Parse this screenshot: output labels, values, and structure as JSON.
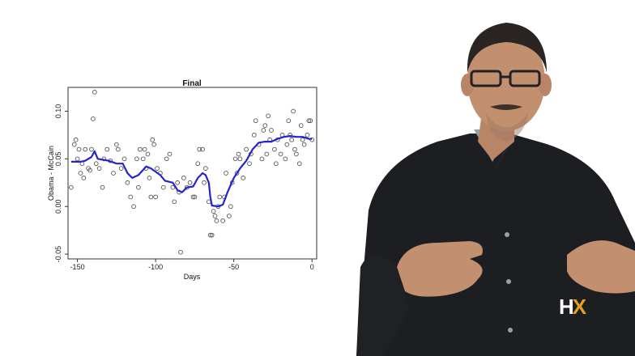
{
  "logo": {
    "h": "H",
    "x": "X"
  },
  "chart_data": {
    "type": "scatter",
    "title": "Final",
    "xlabel": "Days",
    "ylabel": "Obama - McCain",
    "xlim": [
      -156,
      3
    ],
    "ylim": [
      -0.055,
      0.125
    ],
    "xticks": [
      -150,
      -100,
      -50,
      0
    ],
    "yticks": [
      -0.05,
      0.0,
      0.05,
      0.1
    ],
    "xtick_labels": [
      "-150",
      "-100",
      "-50",
      "0"
    ],
    "ytick_labels": [
      "-0.05",
      "0.00",
      "0.05",
      "0.10"
    ],
    "grid": false,
    "colors": {
      "points": "#555555",
      "smooth": "#2323d0",
      "frame": "#333333"
    },
    "points": [
      [
        -154,
        0.02
      ],
      [
        -152,
        0.065
      ],
      [
        -151,
        0.07
      ],
      [
        -150,
        0.05
      ],
      [
        -149,
        0.06
      ],
      [
        -148,
        0.035
      ],
      [
        -147,
        0.045
      ],
      [
        -146,
        0.03
      ],
      [
        -145,
        0.06
      ],
      [
        -143,
        0.04
      ],
      [
        -142,
        0.038
      ],
      [
        -141,
        0.06
      ],
      [
        -140,
        0.092
      ],
      [
        -139,
        0.12
      ],
      [
        -138,
        0.045
      ],
      [
        -136,
        0.04
      ],
      [
        -134,
        0.02
      ],
      [
        -133,
        0.05
      ],
      [
        -131,
        0.06
      ],
      [
        -129,
        0.048
      ],
      [
        -127,
        0.035
      ],
      [
        -125,
        0.065
      ],
      [
        -124,
        0.06
      ],
      [
        -122,
        0.04
      ],
      [
        -120,
        0.05
      ],
      [
        -118,
        0.025
      ],
      [
        -116,
        0.01
      ],
      [
        -114,
        0.0
      ],
      [
        -112,
        0.05
      ],
      [
        -111,
        0.02
      ],
      [
        -110,
        0.06
      ],
      [
        -108,
        0.05
      ],
      [
        -107,
        0.06
      ],
      [
        -106,
        0.04
      ],
      [
        -105,
        0.055
      ],
      [
        -104,
        0.03
      ],
      [
        -103,
        0.01
      ],
      [
        -102,
        0.07
      ],
      [
        -101,
        0.065
      ],
      [
        -100,
        0.01
      ],
      [
        -99,
        0.04
      ],
      [
        -97,
        0.035
      ],
      [
        -95,
        0.02
      ],
      [
        -93,
        0.05
      ],
      [
        -91,
        0.055
      ],
      [
        -89,
        0.02
      ],
      [
        -88,
        0.005
      ],
      [
        -86,
        0.025
      ],
      [
        -85,
        0.015
      ],
      [
        -84,
        -0.048
      ],
      [
        -82,
        0.03
      ],
      [
        -80,
        0.02
      ],
      [
        -78,
        0.025
      ],
      [
        -76,
        0.01
      ],
      [
        -75,
        0.01
      ],
      [
        -73,
        0.045
      ],
      [
        -72,
        0.06
      ],
      [
        -70,
        0.06
      ],
      [
        -69,
        0.025
      ],
      [
        -68,
        0.04
      ],
      [
        -66,
        0.005
      ],
      [
        -65,
        -0.03
      ],
      [
        -64,
        -0.03
      ],
      [
        -63,
        -0.005
      ],
      [
        -62,
        -0.01
      ],
      [
        -61,
        -0.015
      ],
      [
        -60,
        0.0
      ],
      [
        -59,
        0.01
      ],
      [
        -57,
        -0.015
      ],
      [
        -56,
        0.01
      ],
      [
        -55,
        0.035
      ],
      [
        -53,
        -0.01
      ],
      [
        -52,
        0.0
      ],
      [
        -51,
        0.025
      ],
      [
        -49,
        0.05
      ],
      [
        -48,
        0.035
      ],
      [
        -47,
        0.055
      ],
      [
        -46,
        0.05
      ],
      [
        -44,
        0.03
      ],
      [
        -42,
        0.06
      ],
      [
        -40,
        0.045
      ],
      [
        -39,
        0.055
      ],
      [
        -37,
        0.075
      ],
      [
        -36,
        0.09
      ],
      [
        -34,
        0.065
      ],
      [
        -32,
        0.05
      ],
      [
        -31,
        0.08
      ],
      [
        -30,
        0.085
      ],
      [
        -29,
        0.055
      ],
      [
        -28,
        0.095
      ],
      [
        -27,
        0.07
      ],
      [
        -26,
        0.08
      ],
      [
        -24,
        0.06
      ],
      [
        -23,
        0.045
      ],
      [
        -22,
        0.07
      ],
      [
        -20,
        0.055
      ],
      [
        -19,
        0.075
      ],
      [
        -17,
        0.05
      ],
      [
        -16,
        0.065
      ],
      [
        -15,
        0.09
      ],
      [
        -14,
        0.075
      ],
      [
        -13,
        0.07
      ],
      [
        -12,
        0.1
      ],
      [
        -11,
        0.06
      ],
      [
        -10,
        0.055
      ],
      [
        -8,
        0.045
      ],
      [
        -7,
        0.085
      ],
      [
        -6,
        0.07
      ],
      [
        -5,
        0.065
      ],
      [
        -3,
        0.075
      ],
      [
        -2,
        0.09
      ],
      [
        -1,
        0.09
      ],
      [
        0,
        0.07
      ]
    ],
    "smooth_line": [
      [
        -154,
        0.047
      ],
      [
        -148,
        0.047
      ],
      [
        -145,
        0.048
      ],
      [
        -141,
        0.052
      ],
      [
        -139,
        0.058
      ],
      [
        -137,
        0.05
      ],
      [
        -130,
        0.048
      ],
      [
        -125,
        0.045
      ],
      [
        -121,
        0.045
      ],
      [
        -118,
        0.035
      ],
      [
        -115,
        0.03
      ],
      [
        -111,
        0.033
      ],
      [
        -106,
        0.042
      ],
      [
        -103,
        0.04
      ],
      [
        -97,
        0.033
      ],
      [
        -94,
        0.027
      ],
      [
        -89,
        0.025
      ],
      [
        -86,
        0.017
      ],
      [
        -83,
        0.015
      ],
      [
        -80,
        0.02
      ],
      [
        -76,
        0.021
      ],
      [
        -73,
        0.03
      ],
      [
        -70,
        0.035
      ],
      [
        -68,
        0.033
      ],
      [
        -66,
        0.025
      ],
      [
        -65,
        0.01
      ],
      [
        -64,
        0.001
      ],
      [
        -60,
        0.0
      ],
      [
        -57,
        0.002
      ],
      [
        -54,
        0.015
      ],
      [
        -50,
        0.03
      ],
      [
        -46,
        0.04
      ],
      [
        -42,
        0.048
      ],
      [
        -38,
        0.06
      ],
      [
        -34,
        0.067
      ],
      [
        -30,
        0.068
      ],
      [
        -26,
        0.068
      ],
      [
        -22,
        0.071
      ],
      [
        -18,
        0.073
      ],
      [
        -14,
        0.074
      ],
      [
        -10,
        0.073
      ],
      [
        -6,
        0.073
      ],
      [
        -2,
        0.071
      ],
      [
        0,
        0.071
      ]
    ]
  }
}
